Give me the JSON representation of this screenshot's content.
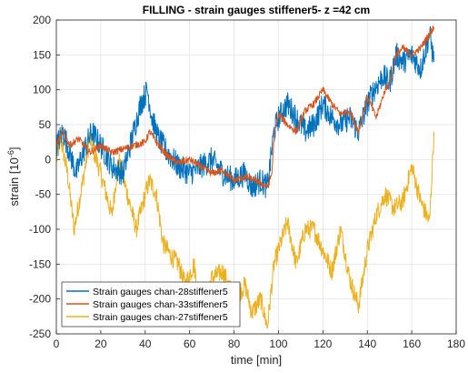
{
  "chart_data": {
    "type": "line",
    "title": "FILLING - strain gauges stiffener5- z =42 cm",
    "xlabel": "time [min]",
    "ylabel_base": "strain [10",
    "ylabel_exp": "-6",
    "ylabel_close": "]",
    "xlim": [
      0,
      180
    ],
    "ylim": [
      -250,
      200
    ],
    "xticks": [
      0,
      20,
      40,
      60,
      80,
      100,
      120,
      140,
      160,
      180
    ],
    "yticks": [
      -250,
      -200,
      -150,
      -100,
      -50,
      0,
      50,
      100,
      150,
      200
    ],
    "grid": true,
    "legend_position": "bottom-left",
    "series": [
      {
        "name": "Strain gauges chan-28stiffener5",
        "color": "#0072BD",
        "noise": 18,
        "x": [
          0,
          3,
          6,
          9,
          12,
          16,
          20,
          25,
          30,
          34,
          38,
          41,
          43,
          46,
          50,
          55,
          60,
          65,
          70,
          75,
          80,
          85,
          88,
          92,
          95,
          98,
          100,
          104,
          108,
          112,
          116,
          120,
          124,
          128,
          132,
          136,
          140,
          143,
          147,
          150,
          153,
          156,
          160,
          164,
          168,
          170
        ],
        "y": [
          20,
          40,
          10,
          -20,
          10,
          40,
          20,
          -10,
          -20,
          30,
          80,
          100,
          60,
          30,
          10,
          -10,
          -20,
          -10,
          0,
          -20,
          -30,
          -20,
          -40,
          -30,
          -40,
          40,
          60,
          80,
          60,
          40,
          50,
          80,
          60,
          50,
          60,
          40,
          80,
          100,
          120,
          110,
          150,
          140,
          150,
          130,
          180,
          140
        ]
      },
      {
        "name": "Strain gauges chan-33stiffener5",
        "color": "#D95319",
        "noise": 5,
        "x": [
          0,
          3,
          6,
          10,
          15,
          20,
          25,
          30,
          35,
          40,
          42,
          45,
          50,
          55,
          60,
          65,
          70,
          75,
          80,
          85,
          90,
          95,
          97,
          98,
          100,
          104,
          108,
          112,
          116,
          120,
          124,
          128,
          132,
          136,
          140,
          144,
          148,
          150,
          153,
          156,
          160,
          164,
          168,
          170
        ],
        "y": [
          20,
          40,
          20,
          30,
          10,
          20,
          10,
          15,
          20,
          25,
          40,
          25,
          5,
          -5,
          0,
          -10,
          -20,
          -15,
          -30,
          -25,
          -30,
          -40,
          -20,
          30,
          65,
          50,
          40,
          70,
          80,
          100,
          80,
          65,
          70,
          40,
          90,
          60,
          100,
          110,
          150,
          160,
          150,
          160,
          180,
          190
        ]
      },
      {
        "name": "Strain gauges chan-27stiffener5",
        "color": "#EDB120",
        "noise": 14,
        "x": [
          0,
          2,
          5,
          8,
          12,
          15,
          20,
          25,
          28,
          32,
          36,
          40,
          42,
          45,
          48,
          52,
          55,
          58,
          62,
          65,
          70,
          75,
          80,
          85,
          88,
          92,
          95,
          98,
          100,
          104,
          108,
          112,
          116,
          120,
          124,
          128,
          132,
          136,
          140,
          144,
          148,
          152,
          156,
          160,
          164,
          168,
          170
        ],
        "y": [
          0,
          30,
          -20,
          -100,
          -30,
          30,
          -20,
          -80,
          0,
          -50,
          -100,
          -50,
          -30,
          -50,
          -120,
          -140,
          -150,
          -180,
          -150,
          -220,
          -170,
          -160,
          -200,
          -180,
          -220,
          -200,
          -240,
          -150,
          -130,
          -90,
          -150,
          -100,
          -100,
          -130,
          -160,
          -100,
          -170,
          -210,
          -130,
          -80,
          -50,
          -70,
          -60,
          -10,
          -60,
          -90,
          40
        ]
      }
    ]
  }
}
